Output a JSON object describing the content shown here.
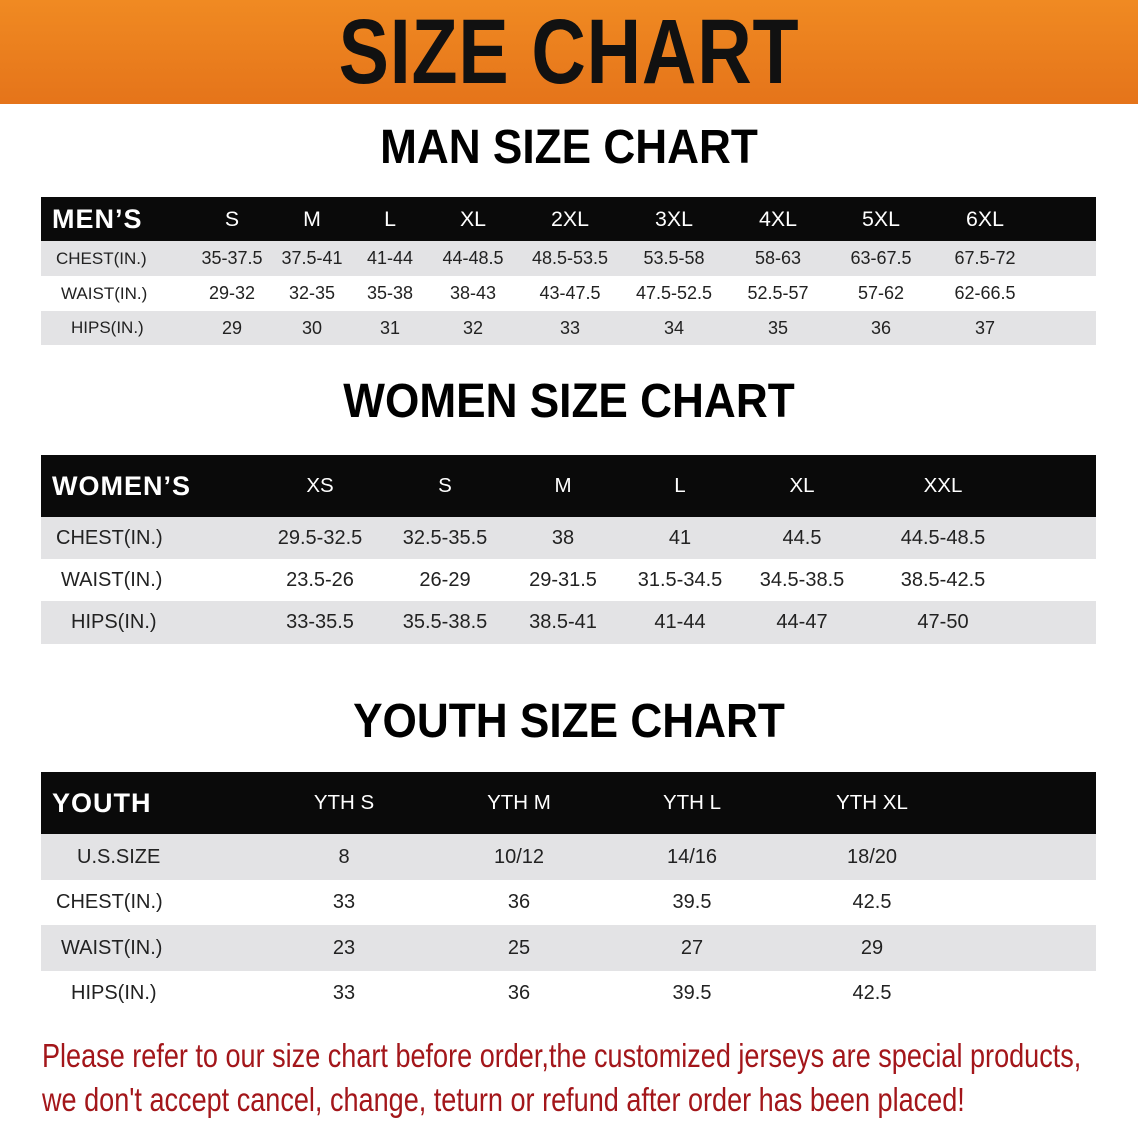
{
  "banner": {
    "title": "SIZE CHART",
    "color": "#e97b1d"
  },
  "men": {
    "title": "MAN SIZE CHART",
    "header_label": "MEN’S",
    "sizes": [
      "S",
      "M",
      "L",
      "XL",
      "2XL",
      "3XL",
      "4XL",
      "5XL",
      "6XL"
    ],
    "rows": [
      {
        "label": "CHEST(IN.)",
        "values": [
          "35-37.5",
          "37.5-41",
          "41-44",
          "44-48.5",
          "48.5-53.5",
          "53.5-58",
          "58-63",
          "63-67.5",
          "67.5-72"
        ]
      },
      {
        "label": "WAIST(IN.)",
        "values": [
          "29-32",
          "32-35",
          "35-38",
          "38-43",
          "43-47.5",
          "47.5-52.5",
          "52.5-57",
          "57-62",
          "62-66.5"
        ]
      },
      {
        "label": "HIPS(IN.)",
        "values": [
          "29",
          "30",
          "31",
          "32",
          "33",
          "34",
          "35",
          "36",
          "37"
        ]
      }
    ]
  },
  "women": {
    "title": "WOMEN SIZE CHART",
    "header_label": "WOMEN’S",
    "sizes": [
      "XS",
      "S",
      "M",
      "L",
      "XL",
      "XXL"
    ],
    "rows": [
      {
        "label": "CHEST(IN.)",
        "values": [
          "29.5-32.5",
          "32.5-35.5",
          "38",
          "41",
          "44.5",
          "44.5-48.5"
        ]
      },
      {
        "label": "WAIST(IN.)",
        "values": [
          "23.5-26",
          "26-29",
          "29-31.5",
          "31.5-34.5",
          "34.5-38.5",
          "38.5-42.5"
        ]
      },
      {
        "label": "HIPS(IN.)",
        "values": [
          "33-35.5",
          "35.5-38.5",
          "38.5-41",
          "41-44",
          "44-47",
          "47-50"
        ]
      }
    ]
  },
  "youth": {
    "title": "YOUTH SIZE CHART",
    "header_label": "YOUTH",
    "sizes": [
      "YTH S",
      "YTH M",
      "YTH L",
      "YTH XL"
    ],
    "rows": [
      {
        "label": "U.S.SIZE",
        "values": [
          "8",
          "10/12",
          "14/16",
          "18/20"
        ]
      },
      {
        "label": "CHEST(IN.)",
        "values": [
          "33",
          "36",
          "39.5",
          "42.5"
        ]
      },
      {
        "label": "WAIST(IN.)",
        "values": [
          "23",
          "25",
          "27",
          "29"
        ]
      },
      {
        "label": "HIPS(IN.)",
        "values": [
          "33",
          "36",
          "39.5",
          "42.5"
        ]
      }
    ]
  },
  "notice": {
    "line1": "Please refer to our size chart before order,the customized jerseys are special products,",
    "line2": "we don't accept cancel, change, teturn or refund after order has been placed!",
    "color": "#a3161a"
  }
}
